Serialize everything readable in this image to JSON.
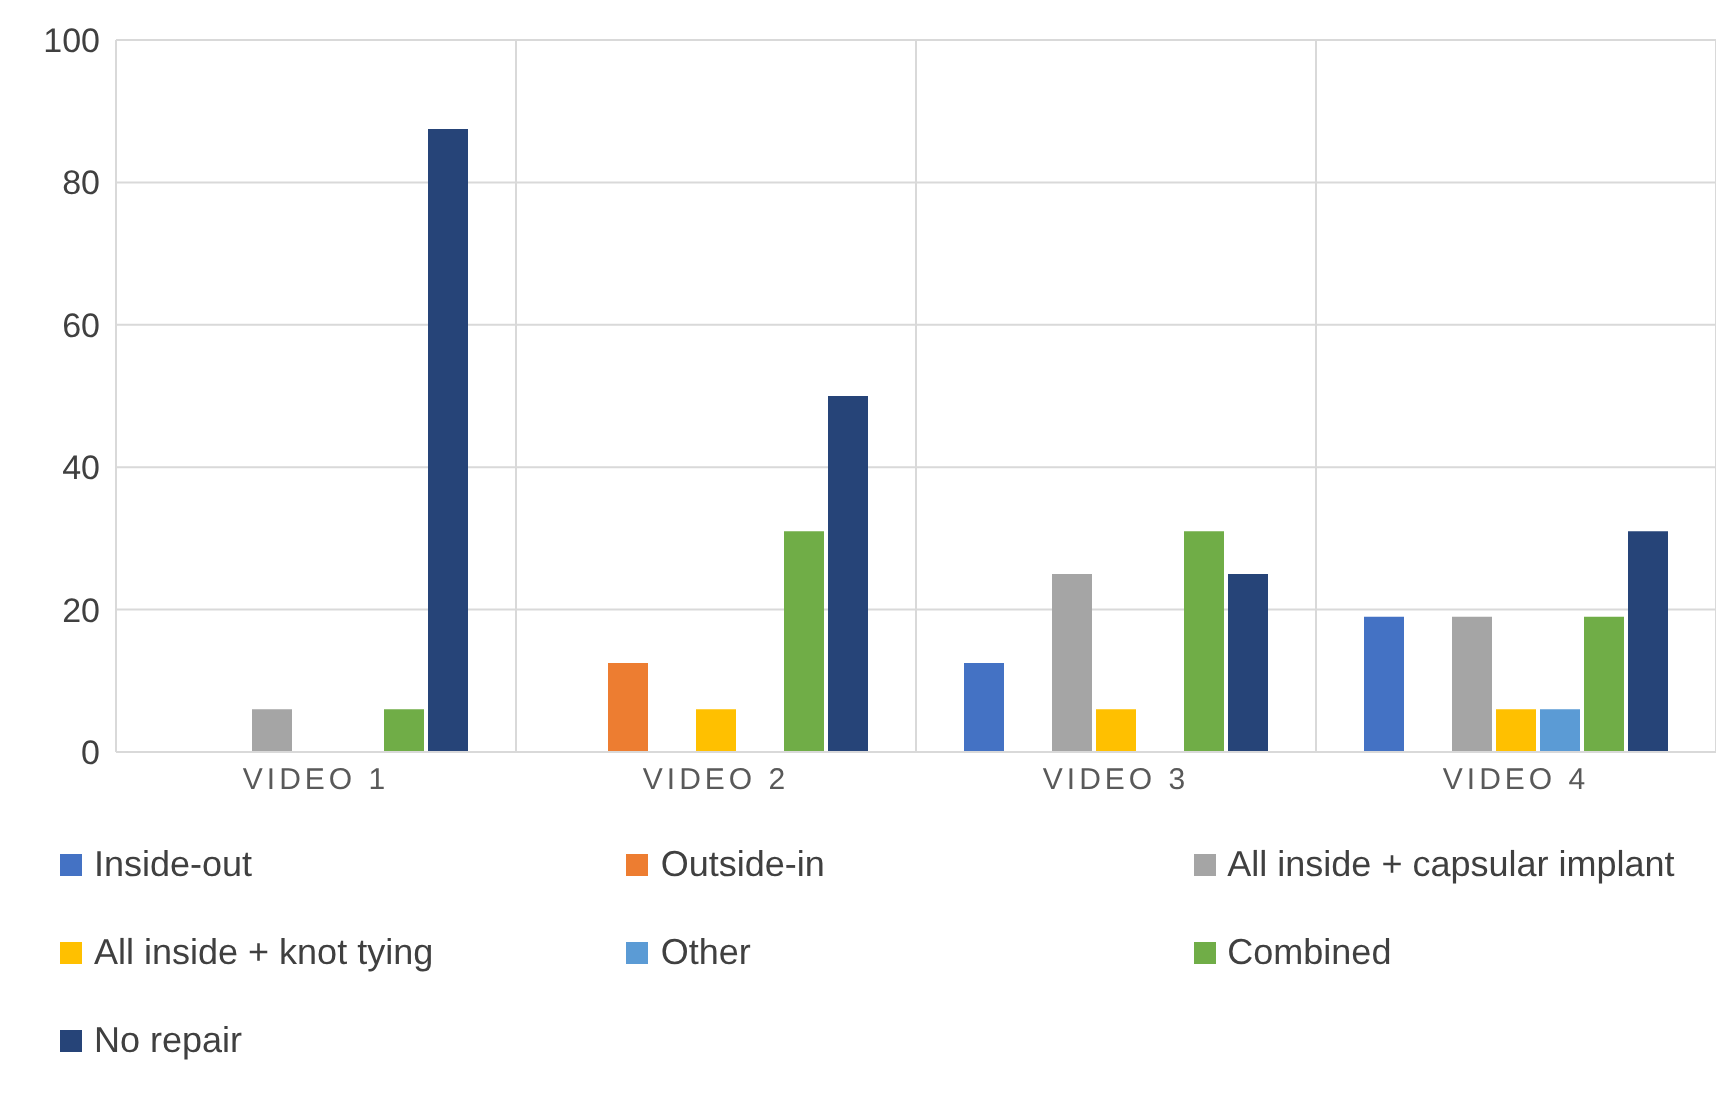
{
  "chart_data": {
    "type": "bar",
    "categories": [
      "VIDEO 1",
      "VIDEO 2",
      "VIDEO 3",
      "VIDEO 4"
    ],
    "series": [
      {
        "name": "Inside-out",
        "color": "#4472c4",
        "values": [
          0,
          0,
          12.5,
          19
        ]
      },
      {
        "name": "Outside-in",
        "color": "#ed7d31",
        "values": [
          0,
          12.5,
          0,
          0
        ]
      },
      {
        "name": "All inside + capsular implant",
        "color": "#a5a5a5",
        "values": [
          6,
          0,
          25,
          19
        ]
      },
      {
        "name": "All inside + knot tying",
        "color": "#ffc000",
        "values": [
          0,
          6,
          6,
          6
        ]
      },
      {
        "name": "Other",
        "color": "#5b9bd5",
        "values": [
          0,
          0,
          0,
          6
        ]
      },
      {
        "name": "Combined",
        "color": "#70ad47",
        "values": [
          6,
          31,
          31,
          19
        ]
      },
      {
        "name": "No repair",
        "color": "#264478",
        "values": [
          87.5,
          50,
          25,
          31
        ]
      }
    ],
    "ylim": [
      0,
      100
    ],
    "yticks": [
      0,
      20,
      40,
      60,
      80,
      100
    ],
    "grid": true,
    "legend": "bottom"
  }
}
